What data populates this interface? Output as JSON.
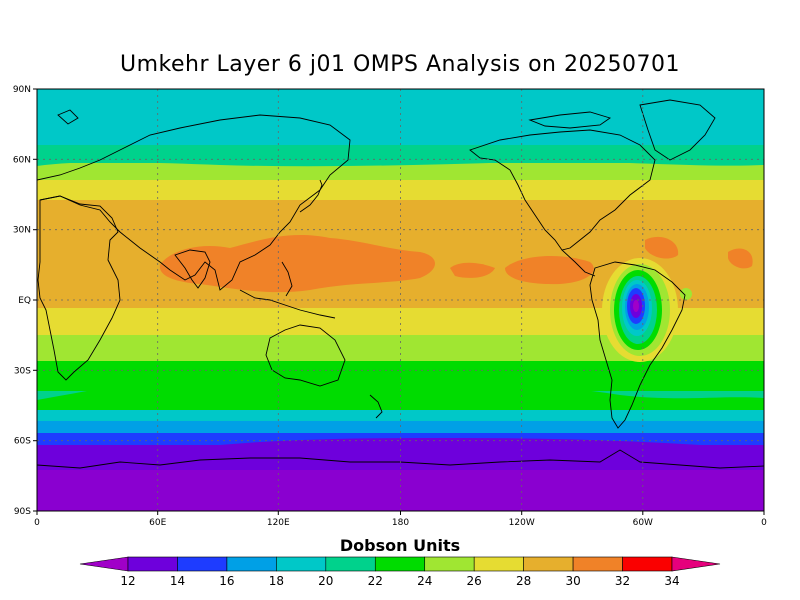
{
  "title": "Umkehr Layer 6 j01 OMPS Analysis on 20250701",
  "map": {
    "lat_labels": [
      "90N",
      "60N",
      "30N",
      "EQ",
      "30S",
      "60S",
      "90S"
    ],
    "lon_labels": [
      "0",
      "60E",
      "120E",
      "180",
      "120W",
      "60W",
      "0"
    ]
  },
  "colorbar": {
    "title": "Dobson Units",
    "ticks": [
      "12",
      "14",
      "16",
      "18",
      "20",
      "22",
      "24",
      "26",
      "28",
      "30",
      "32",
      "34"
    ],
    "colors": [
      "#a000c8",
      "#6e00dc",
      "#1e3cff",
      "#00a0e6",
      "#00c8c8",
      "#00d28c",
      "#00dc00",
      "#a0e632",
      "#e6dc32",
      "#e6af2d",
      "#f08228",
      "#fa0000",
      "#e6007c"
    ]
  },
  "chart_data": {
    "type": "heatmap",
    "title": "Umkehr Layer 6 j01 OMPS Analysis on 20250701",
    "colorbar_label": "Dobson Units",
    "x_range": [
      "0",
      "0"
    ],
    "y_range": [
      "90S",
      "90N"
    ],
    "levels": [
      12,
      14,
      16,
      18,
      20,
      22,
      24,
      26,
      28,
      30,
      32,
      34
    ]
  }
}
